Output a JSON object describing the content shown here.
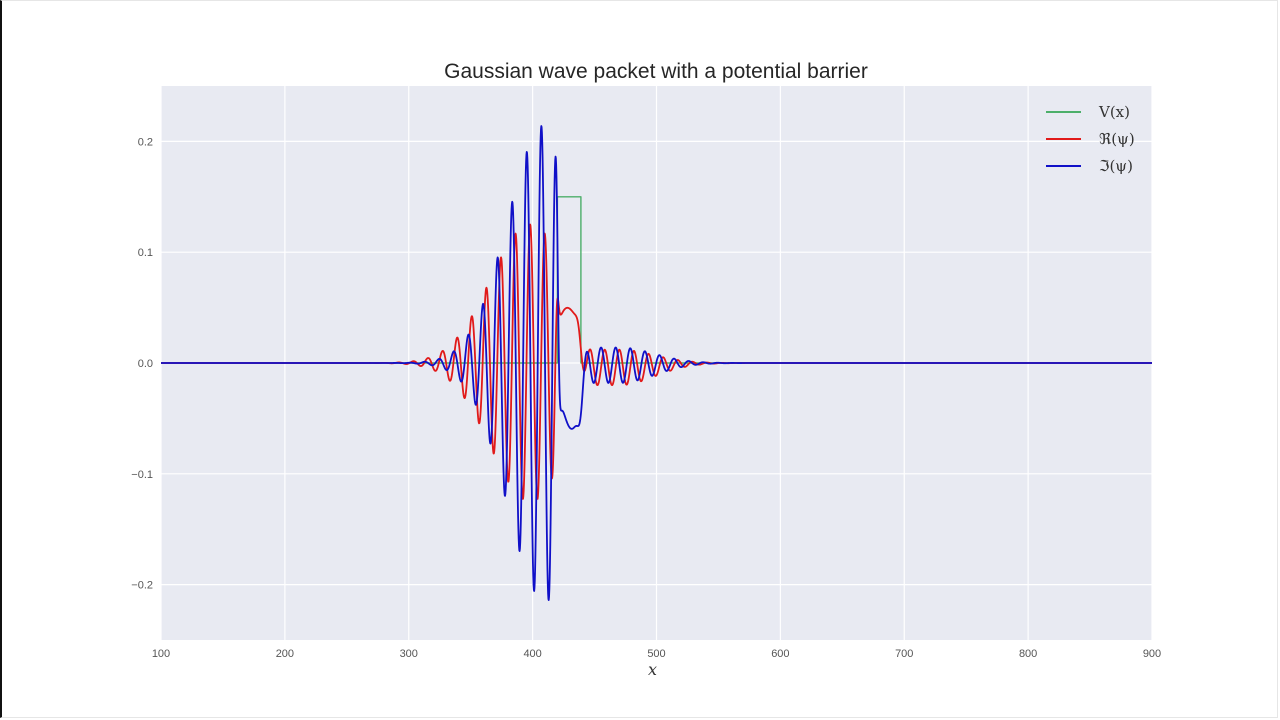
{
  "chart_data": {
    "type": "line",
    "title": "Gaussian wave packet with a potential barrier",
    "xlabel": "x",
    "ylabel": "",
    "xlim": [
      100,
      900
    ],
    "ylim": [
      -0.25,
      0.25
    ],
    "xticks": [
      100,
      200,
      300,
      400,
      500,
      600,
      700,
      800,
      900
    ],
    "yticks": [
      -0.2,
      -0.1,
      0.0,
      0.1,
      0.2
    ],
    "ytick_labels": [
      "−0.2",
      "−0.1",
      "0.0",
      "0.1",
      "0.2"
    ],
    "grid": true,
    "legend_position": "upper right",
    "background": "#e8eaf2",
    "series": [
      {
        "name": "V(x)",
        "label": "V(x)",
        "color": "#4caf6a",
        "kind": "step",
        "points": [
          [
            100,
            0.0
          ],
          [
            420,
            0.0
          ],
          [
            420,
            0.15
          ],
          [
            439,
            0.15
          ],
          [
            439,
            0.0
          ],
          [
            900,
            0.0
          ]
        ]
      },
      {
        "name": "Re(psi)",
        "label": "ℜ(ψ)",
        "color": "#e11a1a",
        "kind": "wave",
        "incident": {
          "center": 398,
          "sigma": 32,
          "amplitude": 0.125,
          "wavelength": 11.8,
          "phase": 0.0,
          "cutoff": 420
        },
        "barrier_bump": {
          "center": 428,
          "width": 11,
          "amplitude": 0.05
        },
        "transmitted": {
          "center": 470,
          "sigma": 28,
          "amplitude": 0.016,
          "wavelength": 11.8,
          "phase": 0.0,
          "start": 437,
          "offset": -0.004
        }
      },
      {
        "name": "Im(psi)",
        "label": "ℑ(ψ)",
        "color": "#1010c8",
        "kind": "wave",
        "incident": {
          "center": 410,
          "sigma": 30,
          "amplitude": 0.215,
          "wavelength": 11.8,
          "phase": 1.5708,
          "cutoff": 421
        },
        "barrier_bump": {
          "center": 432,
          "width": 9,
          "amplitude": -0.06
        },
        "transmitted": {
          "center": 470,
          "sigma": 28,
          "amplitude": 0.016,
          "wavelength": 11.8,
          "phase": 1.5708,
          "start": 437,
          "offset": -0.002
        }
      }
    ],
    "key_values": {
      "Im_max": 0.205,
      "Im_max_x": 419,
      "Im_min": -0.202,
      "Im_min_x": 413,
      "Re_max": 0.11,
      "Re_min": -0.108,
      "barrier_height": 0.15,
      "barrier_x": [
        420,
        439
      ]
    }
  }
}
